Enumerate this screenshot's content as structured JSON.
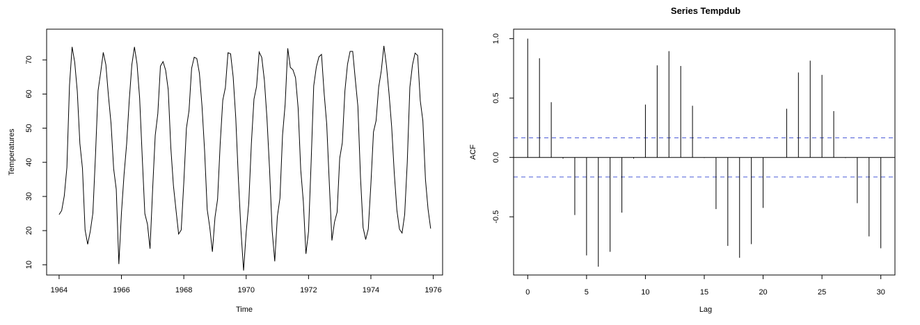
{
  "chart_data": [
    {
      "type": "line",
      "title": "",
      "xlabel": "Time",
      "ylabel": "Temperatures",
      "xlim": [
        1963.6,
        1976.3
      ],
      "ylim": [
        7,
        79
      ],
      "x_ticks": [
        1964,
        1966,
        1968,
        1970,
        1972,
        1974,
        1976
      ],
      "y_ticks": [
        10,
        20,
        30,
        40,
        50,
        60,
        70
      ],
      "start": 1964,
      "frequency": 12,
      "color": "#000000",
      "values": [
        24.7,
        25.9,
        30.2,
        38.5,
        62.5,
        73.8,
        69.4,
        60.8,
        45.5,
        38.2,
        20.2,
        16.0,
        19.8,
        25.1,
        42.0,
        61.0,
        66.3,
        72.2,
        68.6,
        59.4,
        51.3,
        38.1,
        32.1,
        10.2,
        25.2,
        36.4,
        45.4,
        58.2,
        68.6,
        73.8,
        68.8,
        58.8,
        41.5,
        25.0,
        21.9,
        14.7,
        32.1,
        47.9,
        54.3,
        68.2,
        69.5,
        67.0,
        61.3,
        44.3,
        33.2,
        26.0,
        19.0,
        20.2,
        34.1,
        50.0,
        55.1,
        67.5,
        70.8,
        70.4,
        66.1,
        56.5,
        43.4,
        26.2,
        20.9,
        13.8,
        23.9,
        29.2,
        45.4,
        58.2,
        61.9,
        72.1,
        71.8,
        65.0,
        52.9,
        35.2,
        20.0,
        8.3,
        19.4,
        28.0,
        45.5,
        58.5,
        62.2,
        72.3,
        70.7,
        64.1,
        52.9,
        38.0,
        20.0,
        11.0,
        24.1,
        29.5,
        48.0,
        57.0,
        73.4,
        67.8,
        67.1,
        64.8,
        55.9,
        37.8,
        28.5,
        13.2,
        19.7,
        40.0,
        62.4,
        67.9,
        70.9,
        71.6,
        60.3,
        51.2,
        33.8,
        17.1,
        22.5,
        25.4,
        41.2,
        45.7,
        60.9,
        68.7,
        72.5,
        72.5,
        64.3,
        56.4,
        35.6,
        20.9,
        17.4,
        20.5,
        33.6,
        48.9,
        52.2,
        62.0,
        66.8,
        74.1,
        68.3,
        60.0,
        50.4,
        36.8,
        26.0,
        20.4,
        19.3,
        24.7,
        40.0,
        62.0,
        68.5,
        72.0,
        71.3,
        58.1,
        52.2,
        35.0,
        26.3,
        20.6
      ]
    },
    {
      "type": "bar",
      "title": "Series Tempdub",
      "xlabel": "Lag",
      "ylabel": "ACF",
      "xlim": [
        -1.2,
        31.2
      ],
      "ylim": [
        -0.99,
        1.08
      ],
      "x_ticks": [
        0,
        5,
        10,
        15,
        20,
        25,
        30
      ],
      "y_ticks": [
        -0.5,
        0.0,
        0.5,
        1.0
      ],
      "y_tick_labels": [
        "-0.5",
        "0.0",
        "0.5",
        "1.0"
      ],
      "confidence_bound": 0.165,
      "bound_color": "#4a5bd8",
      "lags": [
        0,
        1,
        2,
        3,
        4,
        5,
        6,
        7,
        8,
        9,
        10,
        11,
        12,
        13,
        14,
        15,
        16,
        17,
        18,
        19,
        20,
        21,
        22,
        23,
        24,
        25,
        26,
        27,
        28,
        29,
        30
      ],
      "values": [
        1.0,
        0.835,
        0.465,
        -0.01,
        -0.485,
        -0.825,
        -0.92,
        -0.795,
        -0.465,
        -0.01,
        0.445,
        0.775,
        0.895,
        0.77,
        0.435,
        -0.005,
        -0.435,
        -0.745,
        -0.845,
        -0.73,
        -0.425,
        0.0,
        0.41,
        0.715,
        0.815,
        0.695,
        0.39,
        -0.005,
        -0.385,
        -0.665,
        -0.765
      ]
    }
  ]
}
